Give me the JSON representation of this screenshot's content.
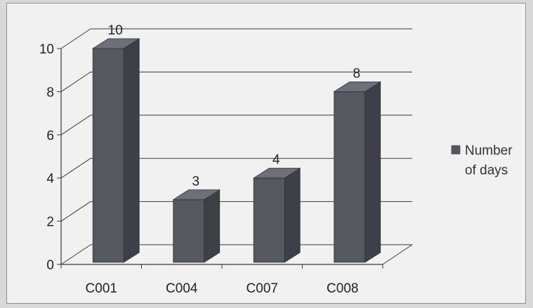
{
  "chart_data": {
    "type": "bar",
    "style": "3d-column",
    "categories": [
      "C001",
      "C004",
      "C007",
      "C008"
    ],
    "series": [
      {
        "name": "Number of days",
        "values": [
          10,
          3,
          4,
          8
        ]
      }
    ],
    "data_labels": [
      "10",
      "3",
      "4",
      "8"
    ],
    "title": "",
    "xlabel": "",
    "ylabel": "",
    "ylim": [
      0,
      10
    ],
    "yticks": [
      "0",
      "2",
      "4",
      "6",
      "8",
      "10"
    ],
    "grid": true,
    "legend_position": "right",
    "legend_lines": [
      "Number",
      "of days"
    ],
    "colors": {
      "bar_front": "#55585f",
      "bar_side": "#3d4046",
      "bar_top": "#6d7078",
      "grid": "#3a3a3a",
      "background": "#f1f1f1"
    }
  }
}
